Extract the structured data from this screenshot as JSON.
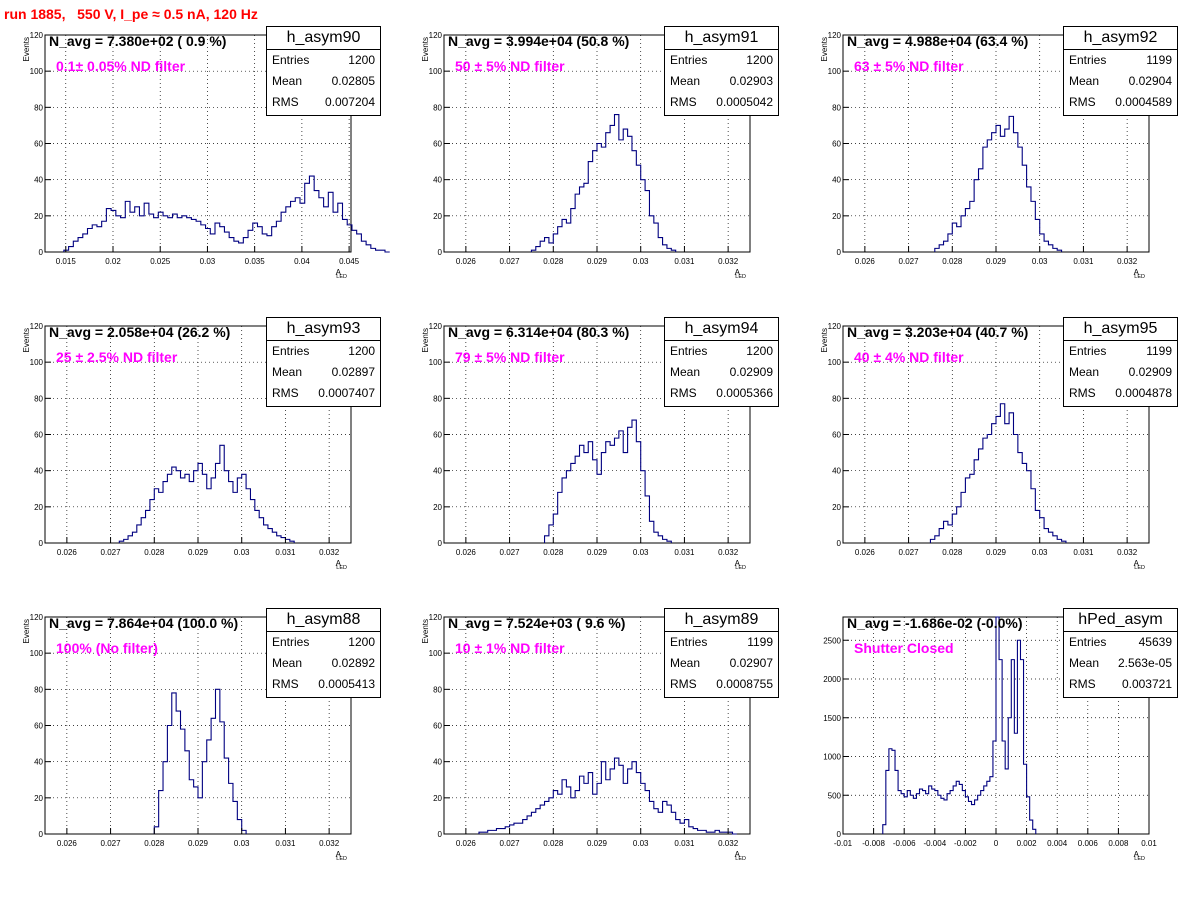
{
  "page": {
    "title": "run 1885,   550 V, I_pe ≈ 0.5 nA, 120 Hz",
    "title_color": "#ff0000"
  },
  "colors": {
    "hist": "#000080",
    "grid": "#000000",
    "n_label": "#000000",
    "filter_label": "#ff00ff"
  },
  "stats_keys": {
    "entries": "Entries",
    "mean": "Mean",
    "rms": "RMS"
  },
  "pads": [
    {
      "name": "h_asym90",
      "n_label": "N_avg = 7.380e+02 ( 0.9 %)",
      "filter_label": "0.1± 0.05% ND filter",
      "entries": "1200",
      "mean": "0.02805",
      "rms": "0.007204"
    },
    {
      "name": "h_asym91",
      "n_label": "N_avg = 3.994e+04 (50.8 %)",
      "filter_label": "50 ± 5% ND filter",
      "entries": "1200",
      "mean": "0.02903",
      "rms": "0.0005042"
    },
    {
      "name": "h_asym92",
      "n_label": "N_avg = 4.988e+04 (63.4 %)",
      "filter_label": "63 ± 5% ND filter",
      "entries": "1199",
      "mean": "0.02904",
      "rms": "0.0004589"
    },
    {
      "name": "h_asym93",
      "n_label": "N_avg = 2.058e+04 (26.2 %)",
      "filter_label": "25 ± 2.5% ND filter",
      "entries": "1200",
      "mean": "0.02897",
      "rms": "0.0007407"
    },
    {
      "name": "h_asym94",
      "n_label": "N_avg = 6.314e+04 (80.3 %)",
      "filter_label": "79 ± 5% ND filter",
      "entries": "1200",
      "mean": "0.02909",
      "rms": "0.0005366"
    },
    {
      "name": "h_asym95",
      "n_label": "N_avg = 3.203e+04 (40.7 %)",
      "filter_label": "40 ± 4% ND filter",
      "entries": "1199",
      "mean": "0.02909",
      "rms": "0.0004878"
    },
    {
      "name": "h_asym88",
      "n_label": "N_avg = 7.864e+04 (100.0 %)",
      "filter_label": "100% (No filter)",
      "entries": "1200",
      "mean": "0.02892",
      "rms": "0.0005413"
    },
    {
      "name": "h_asym89",
      "n_label": "N_avg = 7.524e+03 ( 9.6 %)",
      "filter_label": "10 ± 1% ND filter",
      "entries": "1199",
      "mean": "0.02907",
      "rms": "0.0008755"
    },
    {
      "name": "hPed_asym",
      "n_label": "N_avg = -1.686e-02 (-0.0%)",
      "filter_label": "Shutter Closed",
      "entries": "45639",
      "mean": "2.563e-05",
      "rms": "0.003721"
    }
  ],
  "chart_data": [
    {
      "type": "bar",
      "name": "h_asym90",
      "ylabel": "Events",
      "xlabel": "A",
      "xlabel_sub": "LED",
      "xlim": [
        0.0128,
        0.0452
      ],
      "ylim": [
        0,
        120
      ],
      "xticks": [
        0.015,
        0.02,
        0.025,
        0.03,
        0.035,
        0.04,
        0.045
      ],
      "xticklabels": [
        "0.015",
        "0.02",
        "0.025",
        "0.03",
        "0.035",
        "0.04",
        "0.045"
      ],
      "yticks": [
        0,
        20,
        40,
        60,
        80,
        100,
        120
      ],
      "yticklabels": [
        "0",
        "20",
        "40",
        "60",
        "80",
        "100",
        "120"
      ],
      "bin_start": 0.0148,
      "bin_width": 0.0005,
      "values": [
        1,
        3,
        6,
        8,
        10,
        13,
        15,
        14,
        17,
        24,
        23,
        20,
        19,
        28,
        22,
        25,
        20,
        27,
        21,
        19,
        22,
        20,
        19,
        21,
        19,
        20,
        19,
        18,
        17,
        15,
        13,
        10,
        16,
        14,
        11,
        8,
        6,
        5,
        8,
        12,
        16,
        14,
        10,
        9,
        14,
        17,
        22,
        25,
        28,
        30,
        27,
        38,
        42,
        34,
        30,
        25,
        33,
        22,
        27,
        18,
        15,
        12,
        10,
        6,
        4,
        2,
        1,
        1,
        0
      ]
    },
    {
      "type": "bar",
      "name": "h_asym91",
      "ylabel": "Events",
      "xlabel": "A",
      "xlabel_sub": "LED",
      "xlim": [
        0.0255,
        0.0325
      ],
      "ylim": [
        0,
        120
      ],
      "xticks": [
        0.026,
        0.027,
        0.028,
        0.029,
        0.03,
        0.031,
        0.032
      ],
      "xticklabels": [
        "0.026",
        "0.027",
        "0.028",
        "0.029",
        "0.03",
        "0.031",
        "0.032"
      ],
      "yticks": [
        0,
        20,
        40,
        60,
        80,
        100,
        120
      ],
      "yticklabels": [
        "0",
        "20",
        "40",
        "60",
        "80",
        "100",
        "120"
      ],
      "bin_start": 0.0275,
      "bin_width": 0.0001,
      "values": [
        1,
        3,
        6,
        8,
        5,
        10,
        14,
        18,
        16,
        24,
        32,
        36,
        38,
        50,
        56,
        60,
        58,
        66,
        70,
        76,
        62,
        68,
        64,
        56,
        48,
        40,
        34,
        20,
        16,
        8,
        4,
        2,
        1
      ]
    },
    {
      "type": "bar",
      "name": "h_asym92",
      "ylabel": "Events",
      "xlabel": "A",
      "xlabel_sub": "LED",
      "xlim": [
        0.0255,
        0.0325
      ],
      "ylim": [
        0,
        120
      ],
      "xticks": [
        0.026,
        0.027,
        0.028,
        0.029,
        0.03,
        0.031,
        0.032
      ],
      "xticklabels": [
        "0.026",
        "0.027",
        "0.028",
        "0.029",
        "0.03",
        "0.031",
        "0.032"
      ],
      "yticks": [
        0,
        20,
        40,
        60,
        80,
        100,
        120
      ],
      "yticklabels": [
        "0",
        "20",
        "40",
        "60",
        "80",
        "100",
        "120"
      ],
      "bin_start": 0.0276,
      "bin_width": 0.0001,
      "values": [
        2,
        4,
        6,
        10,
        16,
        14,
        20,
        24,
        28,
        40,
        46,
        58,
        62,
        66,
        70,
        64,
        68,
        75,
        66,
        58,
        48,
        36,
        28,
        18,
        10,
        6,
        4,
        2,
        1
      ]
    },
    {
      "type": "bar",
      "name": "h_asym93",
      "ylabel": "Events",
      "xlabel": "A",
      "xlabel_sub": "LED",
      "xlim": [
        0.0255,
        0.0325
      ],
      "ylim": [
        0,
        120
      ],
      "xticks": [
        0.026,
        0.027,
        0.028,
        0.029,
        0.03,
        0.031,
        0.032
      ],
      "xticklabels": [
        "0.026",
        "0.027",
        "0.028",
        "0.029",
        "0.03",
        "0.031",
        "0.032"
      ],
      "yticks": [
        0,
        20,
        40,
        60,
        80,
        100,
        120
      ],
      "yticklabels": [
        "0",
        "20",
        "40",
        "60",
        "80",
        "100",
        "120"
      ],
      "bin_start": 0.0272,
      "bin_width": 0.0001,
      "values": [
        1,
        2,
        4,
        6,
        10,
        14,
        18,
        24,
        30,
        28,
        34,
        38,
        42,
        40,
        36,
        38,
        34,
        40,
        44,
        38,
        30,
        36,
        44,
        54,
        40,
        34,
        28,
        36,
        38,
        30,
        24,
        18,
        14,
        10,
        8,
        6,
        4,
        3,
        2,
        1
      ]
    },
    {
      "type": "bar",
      "name": "h_asym94",
      "ylabel": "Events",
      "xlabel": "A",
      "xlabel_sub": "LED",
      "xlim": [
        0.0255,
        0.0325
      ],
      "ylim": [
        0,
        120
      ],
      "xticks": [
        0.026,
        0.027,
        0.028,
        0.029,
        0.03,
        0.031,
        0.032
      ],
      "xticklabels": [
        "0.026",
        "0.027",
        "0.028",
        "0.029",
        "0.03",
        "0.031",
        "0.032"
      ],
      "yticks": [
        0,
        20,
        40,
        60,
        80,
        100,
        120
      ],
      "yticklabels": [
        "0",
        "20",
        "40",
        "60",
        "80",
        "100",
        "120"
      ],
      "bin_start": 0.0278,
      "bin_width": 0.0001,
      "values": [
        4,
        10,
        16,
        28,
        36,
        40,
        44,
        48,
        54,
        50,
        56,
        46,
        38,
        50,
        56,
        54,
        58,
        62,
        50,
        64,
        68,
        56,
        40,
        26,
        12,
        6,
        4,
        2,
        1
      ]
    },
    {
      "type": "bar",
      "name": "h_asym95",
      "ylabel": "Events",
      "xlabel": "A",
      "xlabel_sub": "LED",
      "xlim": [
        0.0255,
        0.0325
      ],
      "ylim": [
        0,
        120
      ],
      "xticks": [
        0.026,
        0.027,
        0.028,
        0.029,
        0.03,
        0.031,
        0.032
      ],
      "xticklabels": [
        "0.026",
        "0.027",
        "0.028",
        "0.029",
        "0.03",
        "0.031",
        "0.032"
      ],
      "yticks": [
        0,
        20,
        40,
        60,
        80,
        100,
        120
      ],
      "yticklabels": [
        "0",
        "20",
        "40",
        "60",
        "80",
        "100",
        "120"
      ],
      "bin_start": 0.0275,
      "bin_width": 0.0001,
      "values": [
        2,
        4,
        8,
        12,
        10,
        16,
        20,
        28,
        36,
        38,
        46,
        52,
        58,
        60,
        66,
        70,
        77,
        66,
        72,
        60,
        50,
        44,
        40,
        30,
        18,
        14,
        8,
        6,
        4,
        2,
        1
      ]
    },
    {
      "type": "bar",
      "name": "h_asym88",
      "ylabel": "Events",
      "xlabel": "A",
      "xlabel_sub": "LED",
      "xlim": [
        0.0255,
        0.0325
      ],
      "ylim": [
        0,
        120
      ],
      "xticks": [
        0.026,
        0.027,
        0.028,
        0.029,
        0.03,
        0.031,
        0.032
      ],
      "xticklabels": [
        "0.026",
        "0.027",
        "0.028",
        "0.029",
        "0.03",
        "0.031",
        "0.032"
      ],
      "yticks": [
        0,
        20,
        40,
        60,
        80,
        100,
        120
      ],
      "yticklabels": [
        "0",
        "20",
        "40",
        "60",
        "80",
        "100",
        "120"
      ],
      "bin_start": 0.028,
      "bin_width": 0.0001,
      "values": [
        4,
        24,
        40,
        60,
        78,
        68,
        58,
        46,
        30,
        26,
        20,
        40,
        52,
        64,
        80,
        62,
        42,
        28,
        18,
        8,
        2
      ]
    },
    {
      "type": "bar",
      "name": "h_asym89",
      "ylabel": "Events",
      "xlabel": "A",
      "xlabel_sub": "LED",
      "xlim": [
        0.0255,
        0.0325
      ],
      "ylim": [
        0,
        120
      ],
      "xticks": [
        0.026,
        0.027,
        0.028,
        0.029,
        0.03,
        0.031,
        0.032
      ],
      "xticklabels": [
        "0.026",
        "0.027",
        "0.028",
        "0.029",
        "0.03",
        "0.031",
        "0.032"
      ],
      "yticks": [
        0,
        20,
        40,
        60,
        80,
        100,
        120
      ],
      "yticklabels": [
        "0",
        "20",
        "40",
        "60",
        "80",
        "100",
        "120"
      ],
      "bin_start": 0.0263,
      "bin_width": 0.0001,
      "values": [
        1,
        1,
        2,
        2,
        3,
        3,
        4,
        5,
        6,
        6,
        8,
        10,
        12,
        14,
        16,
        18,
        20,
        24,
        22,
        30,
        26,
        20,
        24,
        32,
        28,
        34,
        22,
        28,
        40,
        30,
        36,
        42,
        38,
        28,
        36,
        40,
        34,
        28,
        24,
        18,
        14,
        12,
        18,
        16,
        12,
        8,
        6,
        8,
        4,
        3,
        2,
        2,
        1,
        1,
        2,
        1,
        1,
        1,
        0
      ]
    },
    {
      "type": "bar",
      "name": "hPed_asym",
      "ylabel": "",
      "xlabel": "A",
      "xlabel_sub": "LED",
      "xlim": [
        -0.01,
        0.01
      ],
      "ylim": [
        0,
        2800
      ],
      "xticks": [
        -0.01,
        -0.008,
        -0.006,
        -0.004,
        -0.002,
        0,
        0.002,
        0.004,
        0.006,
        0.008,
        0.01
      ],
      "xticklabels": [
        "-0.01",
        "-0.008",
        "-0.006",
        "-0.004",
        "-0.002",
        "0",
        "0.002",
        "0.004",
        "0.006",
        "0.008",
        "0.01"
      ],
      "yticks": [
        0,
        500,
        1000,
        1500,
        2000,
        2500
      ],
      "yticklabels": [
        "0",
        "500",
        "1000",
        "1500",
        "2000",
        "2500"
      ],
      "bin_start": -0.0074,
      "bin_width": 0.0002,
      "values": [
        120,
        820,
        1100,
        1080,
        820,
        560,
        520,
        480,
        560,
        500,
        460,
        520,
        580,
        560,
        520,
        620,
        580,
        560,
        500,
        460,
        440,
        520,
        560,
        620,
        680,
        640,
        560,
        480,
        420,
        380,
        440,
        500,
        560,
        620,
        680,
        740,
        1200,
        2800,
        2250,
        1200,
        840,
        1500,
        2250,
        1300,
        2500,
        2250,
        900,
        480,
        180,
        60
      ]
    }
  ]
}
